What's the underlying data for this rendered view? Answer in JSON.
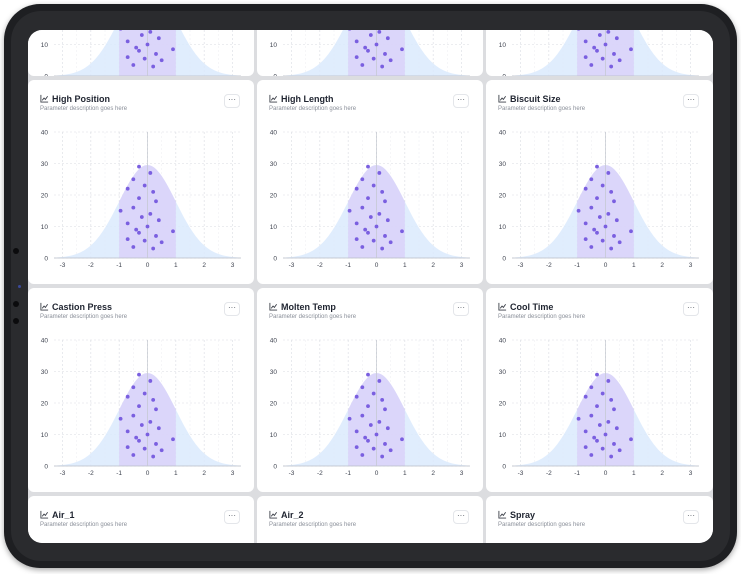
{
  "colors": {
    "device": "#1e1f22",
    "screen_bg": "#dcdde0",
    "card_bg": "#ffffff",
    "curve_fill": "#dbeafd",
    "band_fill": "#d9cdf8",
    "point_color": "#7a5fe0",
    "grid": "#d9dce2"
  },
  "card_menu_label": "···",
  "cards": [
    {
      "title": "",
      "description": ""
    },
    {
      "title": "",
      "description": ""
    },
    {
      "title": "",
      "description": ""
    },
    {
      "title": "High Position",
      "description": "Parameter description goes here"
    },
    {
      "title": "High Length",
      "description": "Parameter description goes here"
    },
    {
      "title": "Biscuit Size",
      "description": "Parameter description goes here"
    },
    {
      "title": "Castion Press",
      "description": "Parameter description goes here"
    },
    {
      "title": "Molten Temp",
      "description": "Parameter description goes here"
    },
    {
      "title": "Cool Time",
      "description": "Parameter description goes here"
    },
    {
      "title": "Air_1",
      "description": "Parameter description goes here"
    },
    {
      "title": "Air_2",
      "description": "Parameter description goes here"
    },
    {
      "title": "Spray",
      "description": "Parameter description goes here"
    }
  ],
  "chart_data": {
    "type": "scatter",
    "title": "",
    "xlabel": "",
    "ylabel": "",
    "x_ticks": [
      "-3",
      "-2",
      "-1",
      "0",
      "1",
      "2",
      "3"
    ],
    "y_ticks": [
      "0",
      "10",
      "20",
      "30",
      "40"
    ],
    "xlim": [
      -3.3,
      3.3
    ],
    "ylim": [
      0,
      40
    ],
    "grid": true,
    "curve": {
      "type": "normal",
      "mean": 0,
      "peak": 29.5,
      "sd": 1.0
    },
    "band": [
      -1,
      1
    ],
    "points": [
      {
        "x": -0.3,
        "y": 29
      },
      {
        "x": 0.1,
        "y": 27
      },
      {
        "x": -0.5,
        "y": 25
      },
      {
        "x": -0.1,
        "y": 23
      },
      {
        "x": 0.2,
        "y": 21
      },
      {
        "x": -0.7,
        "y": 22
      },
      {
        "x": -0.3,
        "y": 19
      },
      {
        "x": 0.3,
        "y": 18
      },
      {
        "x": -0.95,
        "y": 15
      },
      {
        "x": -0.5,
        "y": 16
      },
      {
        "x": 0.1,
        "y": 14
      },
      {
        "x": -0.2,
        "y": 13
      },
      {
        "x": 0.4,
        "y": 12
      },
      {
        "x": -0.7,
        "y": 11
      },
      {
        "x": 0.0,
        "y": 10
      },
      {
        "x": -0.4,
        "y": 9
      },
      {
        "x": 0.9,
        "y": 8.5
      },
      {
        "x": 0.3,
        "y": 7
      },
      {
        "x": -0.7,
        "y": 6
      },
      {
        "x": -0.1,
        "y": 5.5
      },
      {
        "x": 0.5,
        "y": 5
      },
      {
        "x": -0.5,
        "y": 3.5
      },
      {
        "x": 0.2,
        "y": 3
      },
      {
        "x": -0.3,
        "y": 8
      }
    ]
  }
}
